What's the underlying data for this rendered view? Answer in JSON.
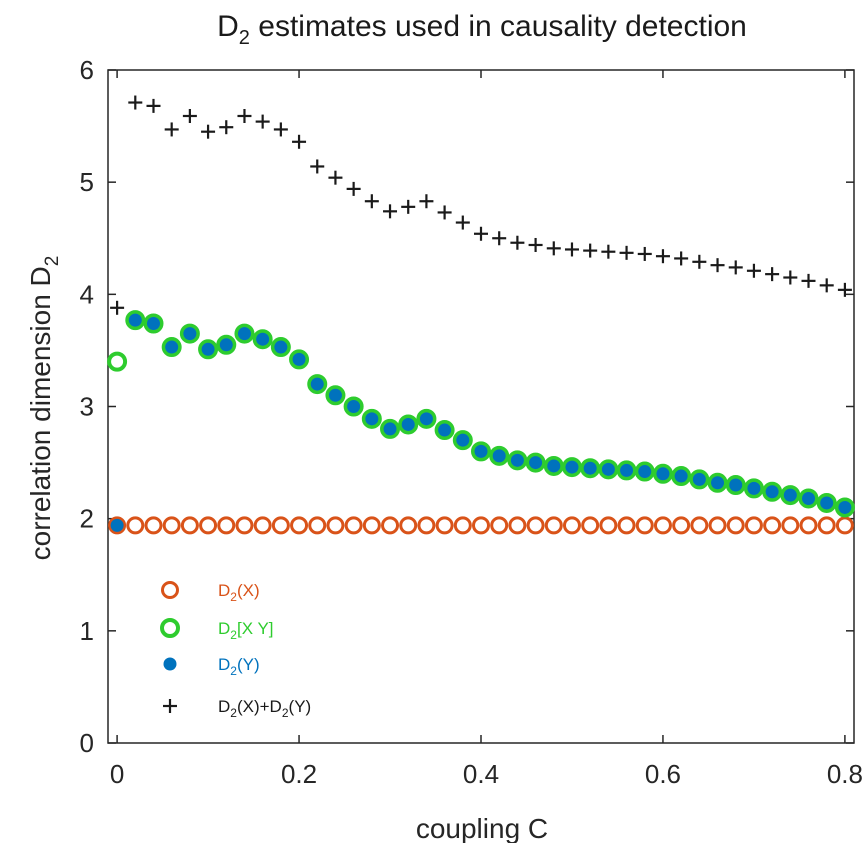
{
  "chart_data": {
    "type": "scatter",
    "title": "D2 estimates used in causality detection",
    "title_main": "D",
    "title_sub": "2",
    "title_rest": " estimates used in causality detection",
    "xlabel": "coupling C",
    "ylabel_main": "correlation dimension D",
    "ylabel_sub": "2",
    "xlim": [
      -0.01,
      0.81
    ],
    "ylim": [
      0,
      6
    ],
    "xticks": [
      0,
      0.2,
      0.4,
      0.6,
      0.8
    ],
    "xtick_labels": [
      "0",
      "0.2",
      "0.4",
      "0.6",
      "0.8"
    ],
    "yticks": [
      0,
      1,
      2,
      3,
      4,
      5,
      6
    ],
    "ytick_labels": [
      "0",
      "1",
      "2",
      "3",
      "4",
      "5",
      "6"
    ],
    "grid": false,
    "legend_position": "lower-left",
    "x": [
      0,
      0.02,
      0.04,
      0.06,
      0.08,
      0.1,
      0.12,
      0.14,
      0.16,
      0.18,
      0.2,
      0.22,
      0.24,
      0.26,
      0.28,
      0.3,
      0.32,
      0.34,
      0.36,
      0.38,
      0.4,
      0.42,
      0.44,
      0.46,
      0.48,
      0.5,
      0.52,
      0.54,
      0.56,
      0.58,
      0.6,
      0.62,
      0.64,
      0.66,
      0.68,
      0.7,
      0.72,
      0.74,
      0.76,
      0.78,
      0.8
    ],
    "series": [
      {
        "legend_main": "D",
        "legend_sub": "2",
        "legend_rest": "(X)",
        "marker": "open-circle",
        "color": "#d95319",
        "values": [
          1.94,
          1.94,
          1.94,
          1.94,
          1.94,
          1.94,
          1.94,
          1.94,
          1.94,
          1.94,
          1.94,
          1.94,
          1.94,
          1.94,
          1.94,
          1.94,
          1.94,
          1.94,
          1.94,
          1.94,
          1.94,
          1.94,
          1.94,
          1.94,
          1.94,
          1.94,
          1.94,
          1.94,
          1.94,
          1.94,
          1.94,
          1.94,
          1.94,
          1.94,
          1.94,
          1.94,
          1.94,
          1.94,
          1.94,
          1.94,
          1.94
        ]
      },
      {
        "legend_main": "D",
        "legend_sub": "2",
        "legend_rest": "[X Y]",
        "marker": "thick-circle",
        "color": "#2ecc2e",
        "values": [
          3.4,
          3.77,
          3.74,
          3.53,
          3.65,
          3.51,
          3.55,
          3.65,
          3.6,
          3.53,
          3.42,
          3.2,
          3.1,
          3.0,
          2.89,
          2.8,
          2.84,
          2.89,
          2.79,
          2.7,
          2.6,
          2.56,
          2.52,
          2.5,
          2.47,
          2.46,
          2.45,
          2.44,
          2.43,
          2.42,
          2.4,
          2.38,
          2.35,
          2.32,
          2.3,
          2.27,
          2.24,
          2.21,
          2.18,
          2.14,
          2.1
        ]
      },
      {
        "legend_main": "D",
        "legend_sub": "2",
        "legend_rest": "(Y)",
        "marker": "dot",
        "color": "#0072bd",
        "x": [
          0,
          0.02,
          0.04,
          0.06,
          0.08,
          0.1,
          0.12,
          0.14,
          0.16,
          0.18,
          0.2,
          0.22,
          0.24,
          0.26,
          0.28,
          0.3,
          0.32,
          0.34,
          0.36,
          0.38,
          0.4,
          0.42,
          0.44,
          0.46,
          0.48,
          0.5,
          0.52,
          0.54,
          0.56,
          0.58,
          0.6,
          0.62,
          0.64,
          0.66,
          0.68,
          0.7,
          0.72,
          0.74,
          0.76,
          0.78,
          0.8
        ],
        "values": [
          1.94,
          3.77,
          3.74,
          3.53,
          3.65,
          3.51,
          3.55,
          3.65,
          3.6,
          3.53,
          3.42,
          3.2,
          3.1,
          3.0,
          2.89,
          2.8,
          2.84,
          2.89,
          2.79,
          2.7,
          2.6,
          2.56,
          2.52,
          2.5,
          2.47,
          2.46,
          2.45,
          2.44,
          2.43,
          2.42,
          2.4,
          2.38,
          2.35,
          2.32,
          2.3,
          2.27,
          2.24,
          2.21,
          2.18,
          2.14,
          2.1
        ]
      },
      {
        "legend_main": "D",
        "legend_sub": "2",
        "legend_rest": "(X)+D",
        "legend_sub2": "2",
        "legend_rest2": "(Y)",
        "marker": "plus",
        "color": "#1a1a1a",
        "values": [
          3.88,
          5.71,
          5.68,
          5.47,
          5.59,
          5.45,
          5.49,
          5.59,
          5.54,
          5.47,
          5.36,
          5.14,
          5.04,
          4.94,
          4.83,
          4.74,
          4.78,
          4.83,
          4.73,
          4.64,
          4.54,
          4.5,
          4.46,
          4.44,
          4.41,
          4.4,
          4.39,
          4.38,
          4.37,
          4.36,
          4.34,
          4.32,
          4.29,
          4.26,
          4.24,
          4.21,
          4.18,
          4.15,
          4.12,
          4.08,
          4.04
        ]
      }
    ]
  }
}
